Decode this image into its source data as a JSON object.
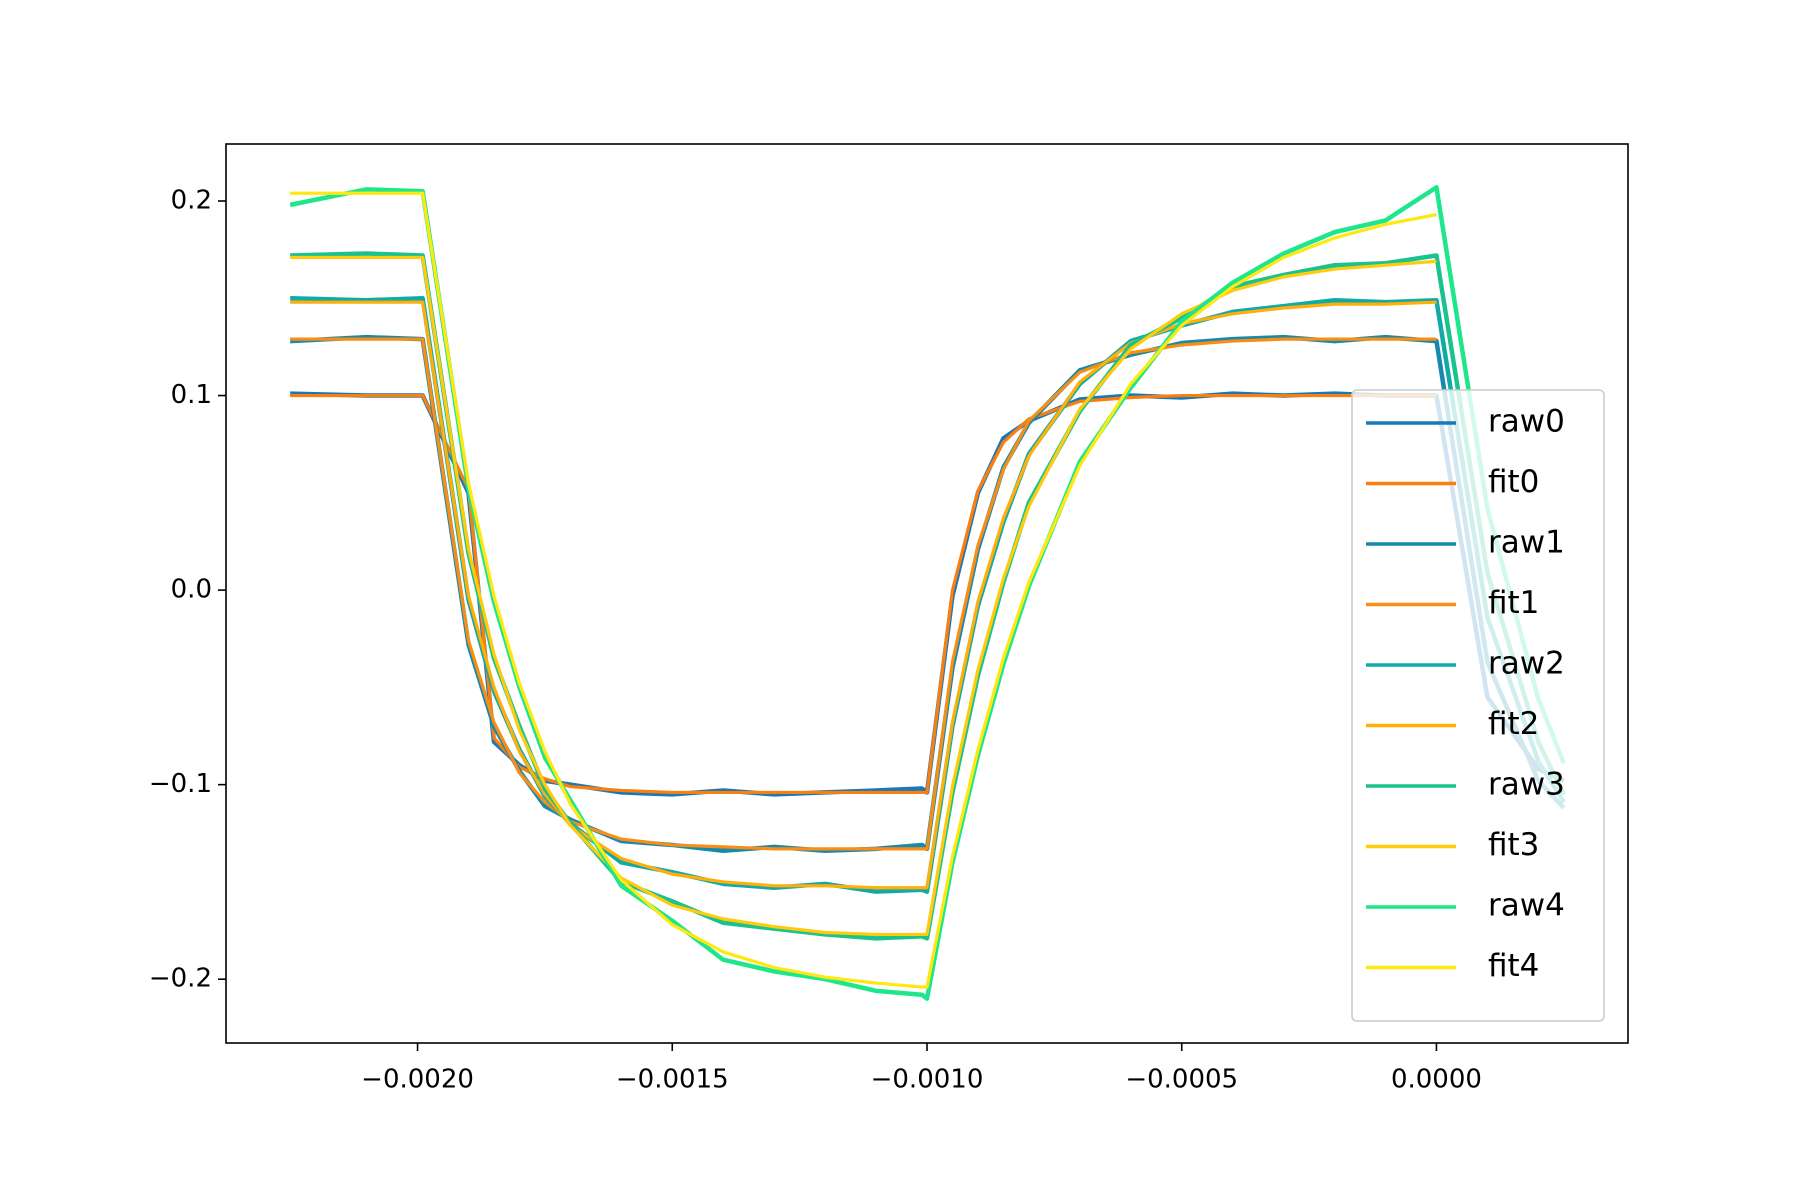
{
  "chart_data": {
    "type": "line",
    "x": [
      -0.00225,
      -0.0021,
      -0.00199,
      -0.0019,
      -0.00185,
      -0.0018,
      -0.00175,
      -0.0017,
      -0.0016,
      -0.0015,
      -0.0014,
      -0.0013,
      -0.0012,
      -0.0011,
      -0.00101,
      -0.001,
      -0.00095,
      -0.0009,
      -0.00085,
      -0.0008,
      -0.0007,
      -0.0006,
      -0.0005,
      -0.0004,
      -0.0003,
      -0.0002,
      -0.0001,
      0,
      0.0001,
      0.0002,
      0.00025
    ],
    "series": [
      {
        "name": "raw0",
        "color": "#1878b8",
        "values": [
          0.101,
          0.1,
          0.1,
          0.05,
          -0.078,
          -0.09,
          -0.098,
          -0.1,
          -0.104,
          -0.105,
          -0.103,
          -0.105,
          -0.104,
          -0.103,
          -0.102,
          -0.104,
          -0.003,
          0.05,
          0.078,
          0.087,
          0.098,
          0.1,
          0.099,
          0.101,
          0.1,
          0.101,
          0.1,
          0.1,
          -0.055,
          -0.092,
          -0.098
        ]
      },
      {
        "name": "fit0",
        "color": "#fc7f0e",
        "values": [
          0.1,
          0.1,
          0.1,
          0.052,
          -0.076,
          -0.091,
          -0.097,
          -0.101,
          -0.103,
          -0.104,
          -0.104,
          -0.104,
          -0.104,
          -0.104,
          -0.104,
          -0.104,
          0.0,
          0.051,
          0.076,
          0.088,
          0.097,
          0.099,
          0.1,
          0.1,
          0.1,
          0.1,
          0.1,
          0.1,
          null,
          null,
          null
        ]
      },
      {
        "name": "raw1",
        "color": "#178aab",
        "values": [
          0.128,
          0.13,
          0.129,
          -0.028,
          -0.07,
          -0.093,
          -0.111,
          -0.118,
          -0.129,
          -0.131,
          -0.134,
          -0.132,
          -0.134,
          -0.133,
          -0.131,
          -0.133,
          -0.04,
          0.021,
          0.063,
          0.086,
          0.113,
          0.121,
          0.127,
          0.129,
          0.13,
          0.128,
          0.13,
          0.128,
          -0.037,
          -0.098,
          -0.112
        ]
      },
      {
        "name": "fit1",
        "color": "#f98e16",
        "values": [
          0.129,
          0.129,
          0.129,
          -0.026,
          -0.068,
          -0.094,
          -0.109,
          -0.119,
          -0.128,
          -0.131,
          -0.132,
          -0.133,
          -0.133,
          -0.133,
          -0.133,
          -0.133,
          -0.037,
          0.023,
          0.062,
          0.087,
          0.112,
          0.122,
          0.126,
          0.128,
          0.129,
          0.129,
          0.129,
          0.129,
          null,
          null,
          null
        ]
      },
      {
        "name": "raw2",
        "color": "#12aaa8",
        "values": [
          0.15,
          0.149,
          0.15,
          -0.005,
          -0.052,
          -0.082,
          -0.106,
          -0.12,
          -0.14,
          -0.145,
          -0.151,
          -0.153,
          -0.151,
          -0.155,
          -0.154,
          -0.155,
          -0.07,
          -0.008,
          0.035,
          0.07,
          0.106,
          0.128,
          0.136,
          0.143,
          0.146,
          0.149,
          0.148,
          0.149,
          -0.014,
          -0.088,
          -0.109
        ]
      },
      {
        "name": "fit2",
        "color": "#ffae0a",
        "values": [
          0.148,
          0.148,
          0.148,
          -0.003,
          -0.05,
          -0.083,
          -0.105,
          -0.121,
          -0.138,
          -0.146,
          -0.15,
          -0.152,
          -0.152,
          -0.153,
          -0.153,
          -0.153,
          -0.068,
          -0.006,
          0.037,
          0.069,
          0.107,
          0.127,
          0.137,
          0.142,
          0.145,
          0.147,
          0.147,
          0.148,
          null,
          null,
          null
        ]
      },
      {
        "name": "raw3",
        "color": "#1ac28e",
        "values": [
          0.172,
          0.173,
          0.172,
          0.019,
          -0.035,
          -0.07,
          -0.102,
          -0.12,
          -0.15,
          -0.16,
          -0.171,
          -0.174,
          -0.177,
          -0.179,
          -0.178,
          -0.179,
          -0.104,
          -0.044,
          0.004,
          0.045,
          0.092,
          0.126,
          0.14,
          0.156,
          0.162,
          0.167,
          0.168,
          0.172,
          0.009,
          -0.078,
          -0.105
        ]
      },
      {
        "name": "fit3",
        "color": "#ffcb0c",
        "values": [
          0.171,
          0.171,
          0.171,
          0.021,
          -0.033,
          -0.072,
          -0.1,
          -0.121,
          -0.148,
          -0.162,
          -0.169,
          -0.173,
          -0.176,
          -0.177,
          -0.177,
          -0.177,
          -0.101,
          -0.041,
          0.006,
          0.043,
          0.093,
          0.124,
          0.142,
          0.154,
          0.161,
          0.165,
          0.167,
          0.169,
          null,
          null,
          null
        ]
      },
      {
        "name": "raw4",
        "color": "#1ee68a",
        "values": [
          0.198,
          0.206,
          0.205,
          0.052,
          -0.006,
          -0.05,
          -0.086,
          -0.108,
          -0.152,
          -0.17,
          -0.19,
          -0.196,
          -0.2,
          -0.206,
          -0.208,
          -0.21,
          -0.14,
          -0.085,
          -0.038,
          0.002,
          0.066,
          0.104,
          0.138,
          0.158,
          0.173,
          0.184,
          0.19,
          0.207,
          0.042,
          -0.056,
          -0.089
        ]
      },
      {
        "name": "fit4",
        "color": "#ffe812",
        "values": [
          0.204,
          0.204,
          0.204,
          0.055,
          -0.003,
          -0.048,
          -0.083,
          -0.11,
          -0.149,
          -0.172,
          -0.186,
          -0.194,
          -0.199,
          -0.202,
          -0.204,
          -0.204,
          -0.137,
          -0.082,
          -0.035,
          0.004,
          0.064,
          0.106,
          0.136,
          0.156,
          0.171,
          0.181,
          0.188,
          0.193,
          null,
          null,
          null
        ]
      }
    ],
    "xlim": [
      -0.002376,
      0.000376
    ],
    "ylim": [
      -0.2328,
      0.2293
    ],
    "xticks": [
      {
        "value": -0.002,
        "label": "−0.0020"
      },
      {
        "value": -0.0015,
        "label": "−0.0015"
      },
      {
        "value": -0.001,
        "label": "−0.0010"
      },
      {
        "value": -0.0005,
        "label": "−0.0005"
      },
      {
        "value": 0,
        "label": "0.0000"
      }
    ],
    "yticks": [
      {
        "value": -0.2,
        "label": "−0.2"
      },
      {
        "value": -0.1,
        "label": "−0.1"
      },
      {
        "value": 0,
        "label": "0.0"
      },
      0.1,
      0.2
    ],
    "legend": "lower right"
  }
}
